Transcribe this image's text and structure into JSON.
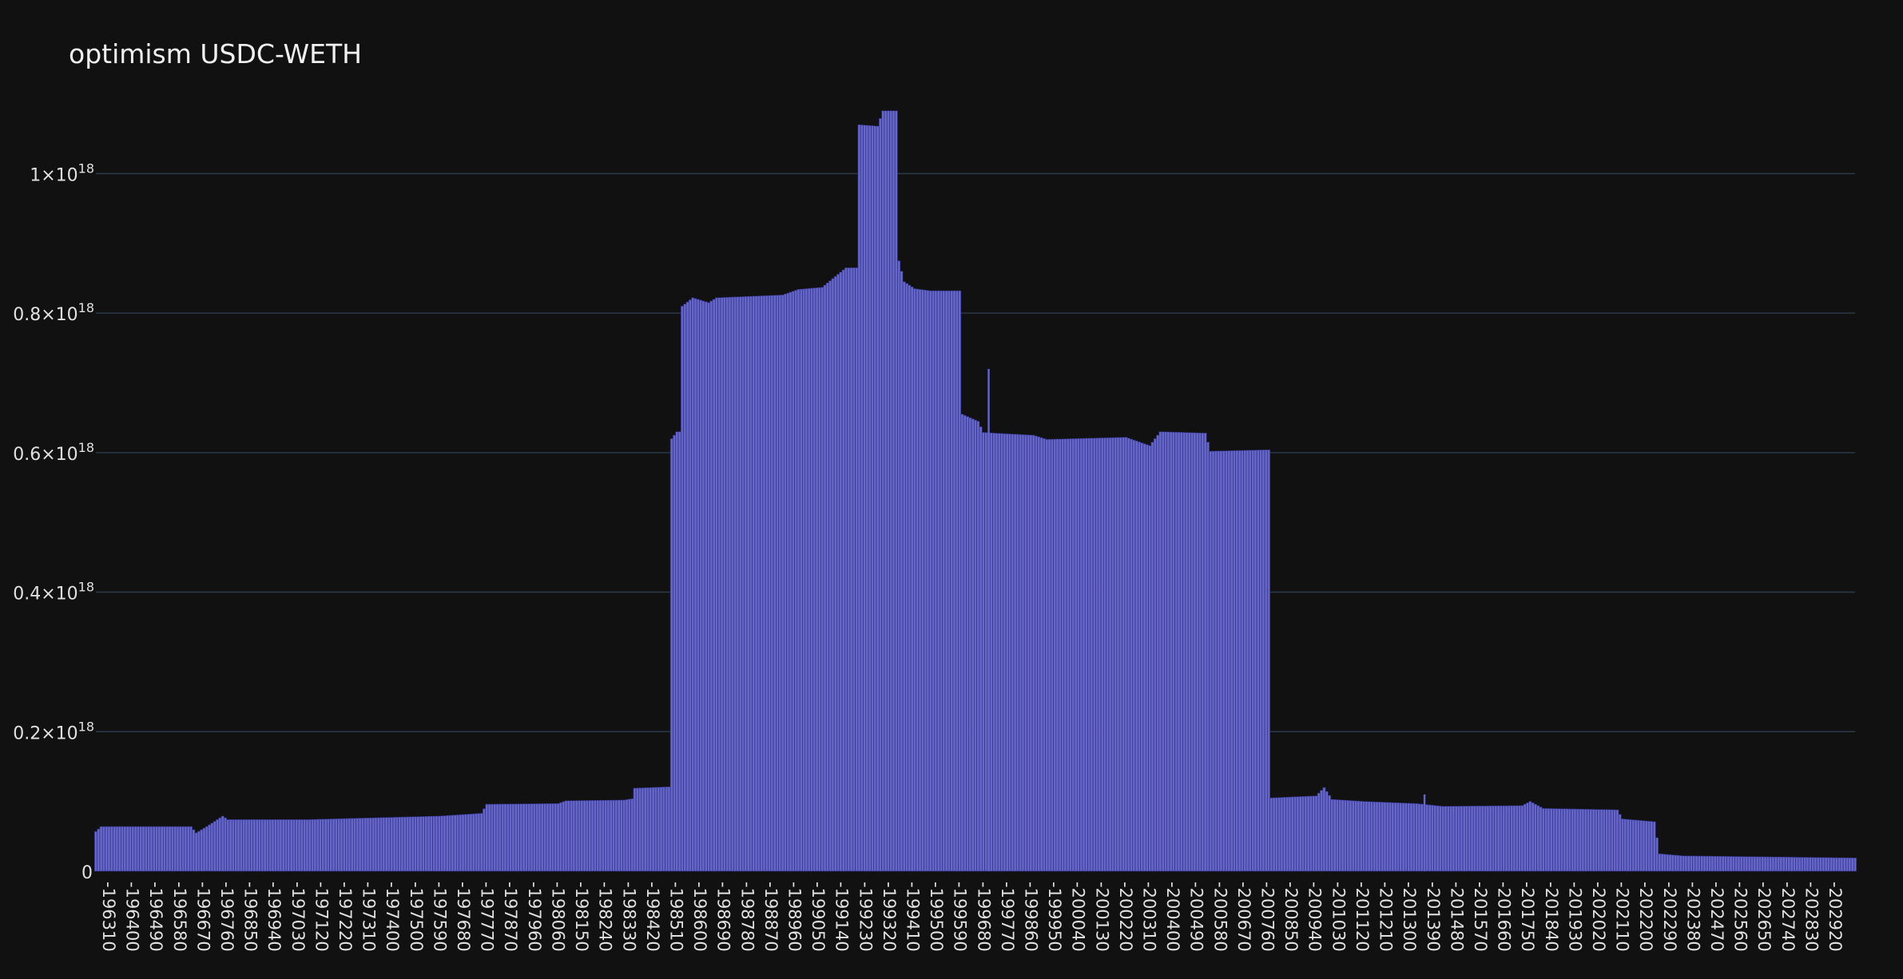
{
  "chart_data": {
    "type": "bar",
    "title": "optimism USDC-WETH",
    "xlabel": "",
    "ylabel": "",
    "ylim": [
      0,
      1.1e+18
    ],
    "grid": true,
    "legend": "none",
    "bar_color": "#6566c8",
    "background": "#111111",
    "y_ticks": [
      {
        "value": 0,
        "label": "0"
      },
      {
        "value": 2e+17,
        "label": "0.2×10",
        "exp": "18"
      },
      {
        "value": 4e+17,
        "label": "0.4×10",
        "exp": "18"
      },
      {
        "value": 6e+17,
        "label": "0.6×10",
        "exp": "18"
      },
      {
        "value": 8e+17,
        "label": "0.8×10",
        "exp": "18"
      },
      {
        "value": 1e+18,
        "label": "1×10",
        "exp": "18"
      }
    ],
    "x_range": [
      -196300,
      -202960
    ],
    "x_tick_labels": [
      "-196310",
      "-196400",
      "-196490",
      "-196580",
      "-196670",
      "-196760",
      "-196850",
      "-196940",
      "-197030",
      "-197120",
      "-197220",
      "-197310",
      "-197400",
      "-197500",
      "-197590",
      "-197680",
      "-197770",
      "-197870",
      "-197960",
      "-198060",
      "-198150",
      "-198240",
      "-198330",
      "-198420",
      "-198510",
      "-198600",
      "-198690",
      "-198780",
      "-198870",
      "-198960",
      "-199050",
      "-199140",
      "-199230",
      "-199320",
      "-199410",
      "-199500",
      "-199590",
      "-199680",
      "-199770",
      "-199860",
      "-199950",
      "-200040",
      "-200130",
      "-200220",
      "-200310",
      "-200400",
      "-200490",
      "-200580",
      "-200670",
      "-200760",
      "-200850",
      "-200940",
      "-201030",
      "-201120",
      "-201210",
      "-201300",
      "-201390",
      "-201480",
      "-201570",
      "-201660",
      "-201750",
      "-201840",
      "-201930",
      "-202020",
      "-202110",
      "-202200",
      "-202290",
      "-202380",
      "-202470",
      "-202560",
      "-202650",
      "-202740",
      "-202830",
      "-202920"
    ],
    "series_profile": [
      [
        -196300,
        5.7e+16
      ],
      [
        -196320,
        6.4e+16
      ],
      [
        -196660,
        6.4e+16
      ],
      [
        -196680,
        5.5e+16
      ],
      [
        -196720,
        6.4e+16
      ],
      [
        -196760,
        7.4e+16
      ],
      [
        -196780,
        7.9e+16
      ],
      [
        -196800,
        7.4e+16
      ],
      [
        -197100,
        7.4e+16
      ],
      [
        -197600,
        7.9e+16
      ],
      [
        -197760,
        8.3e+16
      ],
      [
        -197780,
        9.6e+16
      ],
      [
        -198050,
        9.7e+16
      ],
      [
        -198080,
        1.01e+17
      ],
      [
        -198300,
        1.02e+17
      ],
      [
        -198330,
        1.04e+17
      ],
      [
        -198340,
        1.19e+17
      ],
      [
        -198470,
        1.21e+17
      ],
      [
        -198480,
        6.2e+17
      ],
      [
        -198500,
        6.3e+17
      ],
      [
        -198520,
        8.1e+17
      ],
      [
        -198560,
        8.22e+17
      ],
      [
        -198620,
        8.15e+17
      ],
      [
        -198650,
        8.22e+17
      ],
      [
        -198900,
        8.26e+17
      ],
      [
        -198960,
        8.34e+17
      ],
      [
        -199050,
        8.37e+17
      ],
      [
        -199140,
        8.65e+17
      ],
      [
        -199190,
        1.07e+18
      ],
      [
        -199260,
        1.068e+18
      ],
      [
        -199280,
        1.09e+18
      ],
      [
        -199340,
        8.75e+17
      ],
      [
        -199360,
        8.45e+17
      ],
      [
        -199400,
        8.35e+17
      ],
      [
        -199460,
        8.32e+17
      ],
      [
        -199580,
        6.55e+17
      ],
      [
        -199640,
        6.45e+17
      ],
      [
        -199660,
        6.29e+17
      ],
      [
        -199700,
        6.28e+17
      ],
      [
        -199850,
        6.25e+17
      ],
      [
        -199900,
        6.19e+17
      ],
      [
        -200200,
        6.22e+17
      ],
      [
        -200290,
        6.1e+17
      ],
      [
        -200330,
        6.3e+17
      ],
      [
        -200500,
        6.28e+17
      ],
      [
        -200520,
        6.02e+17
      ],
      [
        -200730,
        6.04e+17
      ],
      [
        -200745,
        1.05e+17
      ],
      [
        -200920,
        1.08e+17
      ],
      [
        -200950,
        1.2e+17
      ],
      [
        -200980,
        1.03e+17
      ],
      [
        -201100,
        1e+17
      ],
      [
        -201300,
        9.7e+16
      ],
      [
        -201400,
        9.3e+16
      ],
      [
        -201700,
        9.4e+16
      ],
      [
        -201730,
        1e+17
      ],
      [
        -201780,
        9e+16
      ],
      [
        -202060,
        8.8e+16
      ],
      [
        -202080,
        7.5e+16
      ],
      [
        -202200,
        7.1e+16
      ],
      [
        -202220,
        2.5e+16
      ],
      [
        -202310,
        2.2e+16
      ],
      [
        -202960,
        1.9e+16
      ]
    ],
    "spikes": [
      {
        "x": -199680,
        "value": 7.2e+17
      },
      {
        "x": -201330,
        "value": 1.1e+17
      }
    ]
  }
}
